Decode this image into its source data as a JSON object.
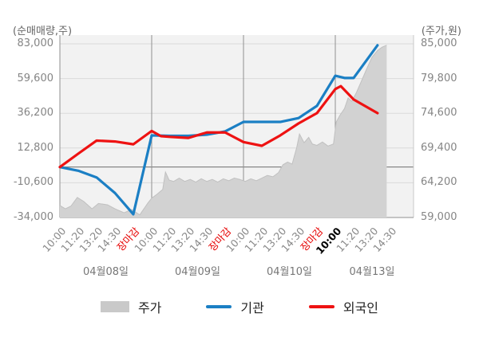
{
  "header": {
    "left": "(순매매량,주)",
    "right": "(주가,원)"
  },
  "legend": {
    "items": [
      {
        "label": "주가",
        "type": "area",
        "color": "#c9c9c9"
      },
      {
        "label": "기관",
        "type": "line",
        "color": "#1b7fc4"
      },
      {
        "label": "외국인",
        "type": "line",
        "color": "#ee1212"
      }
    ]
  },
  "chart_data": {
    "type": "mixed",
    "left_axis": {
      "label": "(순매매량,주)",
      "tick_labels": [
        "83,000",
        "59,600",
        "36,200",
        "12,800",
        "-10,600",
        "-34,000"
      ],
      "range": [
        -34000,
        83000
      ],
      "zero_line": 0
    },
    "right_axis": {
      "label": "(주가,원)",
      "tick_labels": [
        "85,000",
        "79,800",
        "74,600",
        "69,400",
        "64,200",
        "59,000"
      ],
      "range": [
        59000,
        85000
      ]
    },
    "x_axis": {
      "days": [
        {
          "date": "04월08일",
          "times": [
            "10:00",
            "11:20",
            "13:20",
            "14:30",
            "장마감"
          ]
        },
        {
          "date": "04월09일",
          "times": [
            "10:00",
            "11:20",
            "13:20",
            "14:30",
            "장마감"
          ]
        },
        {
          "date": "04월10일",
          "times": [
            "10:00",
            "11:20",
            "13:20",
            "14:30",
            "장마감"
          ]
        },
        {
          "date": "04월13일",
          "times": [
            "10:00",
            "11:20",
            "13:20",
            "14:30"
          ],
          "bold_first_time": true
        }
      ],
      "closing_label": "장마감",
      "closing_label_color": "#e60000"
    },
    "series": [
      {
        "name": "주가",
        "type": "area",
        "axis": "right",
        "fill": "#d2d2d2",
        "edge": "#c0c0c0",
        "points": [
          [
            0,
            60800
          ],
          [
            0.3,
            60300
          ],
          [
            0.6,
            60700
          ],
          [
            0.95,
            62000
          ],
          [
            1.3,
            61400
          ],
          [
            1.75,
            60300
          ],
          [
            2.1,
            61100
          ],
          [
            2.6,
            60900
          ],
          [
            3.0,
            60300
          ],
          [
            3.5,
            59700
          ],
          [
            3.9,
            60200
          ],
          [
            4.35,
            59400
          ],
          [
            4.8,
            61200
          ],
          [
            5.0,
            61900
          ],
          [
            5.3,
            62500
          ],
          [
            5.6,
            63200
          ],
          [
            5.75,
            65800
          ],
          [
            5.95,
            64600
          ],
          [
            6.2,
            64400
          ],
          [
            6.5,
            64900
          ],
          [
            6.8,
            64400
          ],
          [
            7.1,
            64700
          ],
          [
            7.4,
            64300
          ],
          [
            7.7,
            64800
          ],
          [
            8.0,
            64400
          ],
          [
            8.3,
            64700
          ],
          [
            8.6,
            64300
          ],
          [
            8.9,
            64800
          ],
          [
            9.2,
            64500
          ],
          [
            9.5,
            64900
          ],
          [
            9.8,
            64700
          ],
          [
            10.1,
            64400
          ],
          [
            10.4,
            64800
          ],
          [
            10.7,
            64500
          ],
          [
            11.0,
            64900
          ],
          [
            11.3,
            65300
          ],
          [
            11.6,
            65100
          ],
          [
            11.9,
            65700
          ],
          [
            12.15,
            66900
          ],
          [
            12.4,
            67300
          ],
          [
            12.65,
            67000
          ],
          [
            12.9,
            69500
          ],
          [
            13.05,
            71500
          ],
          [
            13.3,
            70200
          ],
          [
            13.55,
            71000
          ],
          [
            13.75,
            70000
          ],
          [
            14.0,
            69800
          ],
          [
            14.3,
            70300
          ],
          [
            14.6,
            69700
          ],
          [
            14.9,
            70000
          ],
          [
            15.05,
            73300
          ],
          [
            15.25,
            74300
          ],
          [
            15.5,
            75300
          ],
          [
            15.7,
            76900
          ],
          [
            15.9,
            76400
          ],
          [
            16.15,
            77700
          ],
          [
            16.45,
            79600
          ],
          [
            16.75,
            81500
          ],
          [
            17.0,
            83000
          ],
          [
            17.3,
            84000
          ],
          [
            17.55,
            84500
          ],
          [
            17.8,
            84800
          ]
        ]
      },
      {
        "name": "기관",
        "type": "line",
        "axis": "left",
        "color": "#1b7fc4",
        "points": [
          [
            0,
            0
          ],
          [
            1,
            -2500
          ],
          [
            2,
            -7000
          ],
          [
            3,
            -17500
          ],
          [
            4,
            -31800
          ],
          [
            5,
            21300
          ],
          [
            6,
            21000
          ],
          [
            7,
            21000
          ],
          [
            8,
            21800
          ],
          [
            9,
            24000
          ],
          [
            10,
            30400
          ],
          [
            11,
            30400
          ],
          [
            12,
            30400
          ],
          [
            13,
            33000
          ],
          [
            14,
            41200
          ],
          [
            15,
            61500
          ],
          [
            15.5,
            60000
          ],
          [
            16,
            60000
          ],
          [
            17.3,
            82000
          ]
        ]
      },
      {
        "name": "외국인",
        "type": "line",
        "axis": "left",
        "color": "#ee1212",
        "points": [
          [
            0,
            0
          ],
          [
            1,
            9000
          ],
          [
            2,
            17800
          ],
          [
            3,
            17200
          ],
          [
            4,
            15300
          ],
          [
            5,
            24300
          ],
          [
            5.5,
            20800
          ],
          [
            6,
            20300
          ],
          [
            7,
            19600
          ],
          [
            8,
            23300
          ],
          [
            9,
            23300
          ],
          [
            10,
            16800
          ],
          [
            11,
            14300
          ],
          [
            12,
            21300
          ],
          [
            13,
            29400
          ],
          [
            14,
            36300
          ],
          [
            15,
            52500
          ],
          [
            15.3,
            54500
          ],
          [
            16,
            45500
          ],
          [
            17.3,
            36300
          ]
        ]
      }
    ],
    "grid": {
      "horizontal": true,
      "vertical_day_separators": true
    },
    "legend_position": "bottom"
  }
}
